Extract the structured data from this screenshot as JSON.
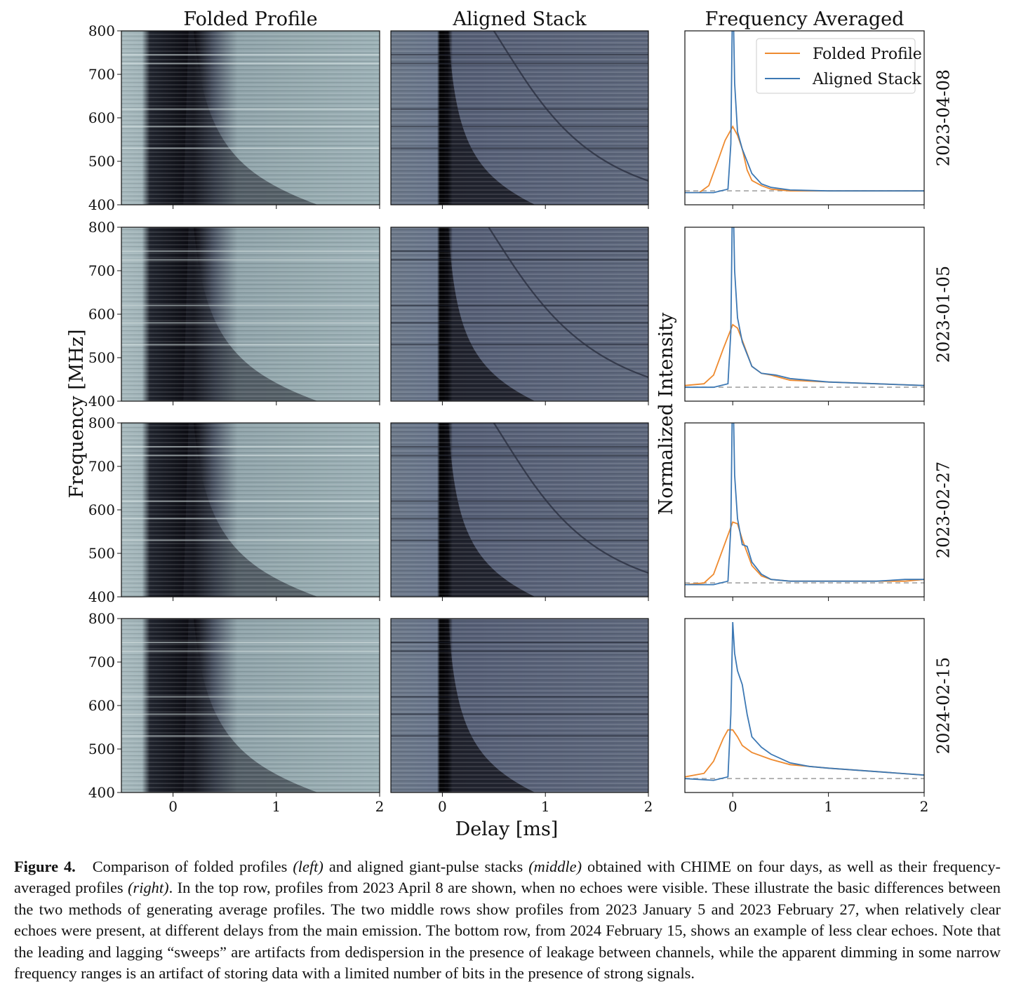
{
  "figure": {
    "column_titles": [
      "Folded Profile",
      "Aligned Stack",
      "Frequency Averaged"
    ],
    "ylabel_left": "Frequency [MHz]",
    "ylabel_right": "Normalized Intensity",
    "xlabel": "Delay [ms]",
    "row_labels": [
      "2023-04-08",
      "2023-01-05",
      "2023-02-27",
      "2024-02-15"
    ],
    "legend": [
      {
        "label": "Folded Profile",
        "color": "#ee8a2f"
      },
      {
        "label": "Aligned Stack",
        "color": "#3c78b4"
      }
    ]
  },
  "chart_data": [
    {
      "type": "heatmap",
      "panel": "waterfall",
      "columns": [
        "Folded Profile",
        "Aligned Stack"
      ],
      "rows": [
        "2023-04-08",
        "2023-01-05",
        "2023-02-27",
        "2024-02-15"
      ],
      "xlabel": "Delay [ms]",
      "ylabel": "Frequency [MHz]",
      "xlim": [
        -0.5,
        2
      ],
      "ylim": [
        400,
        800
      ],
      "x_ticks": [
        "0",
        "1",
        "2"
      ],
      "y_ticks": [
        "400",
        "500",
        "600",
        "700",
        "800"
      ],
      "colormap": "bone"
    },
    {
      "type": "line",
      "panel": "frequency_averaged",
      "title": "Frequency Averaged",
      "xlabel": "Delay [ms]",
      "ylabel": "Normalized Intensity",
      "xlim": [
        -0.5,
        2
      ],
      "x_ticks": [
        "0",
        "1",
        "2"
      ],
      "legend_position": "top-right",
      "rows": [
        {
          "label": "2023-04-08",
          "baseline": 0.08,
          "series": [
            {
              "name": "Folded Profile",
              "x": [
                -0.5,
                -0.35,
                -0.25,
                -0.15,
                -0.08,
                0,
                0.05,
                0.1,
                0.15,
                0.2,
                0.3,
                0.4,
                0.6,
                1,
                1.5,
                2
              ],
              "y": [
                0.07,
                0.07,
                0.11,
                0.26,
                0.37,
                0.45,
                0.4,
                0.32,
                0.2,
                0.14,
                0.11,
                0.09,
                0.08,
                0.08,
                0.08,
                0.08
              ]
            },
            {
              "name": "Aligned Stack",
              "x": [
                -0.5,
                -0.2,
                -0.05,
                -0.02,
                0,
                0.02,
                0.05,
                0.1,
                0.2,
                0.3,
                0.4,
                0.6,
                1,
                1.5,
                2
              ],
              "y": [
                0.07,
                0.07,
                0.09,
                0.35,
                1.3,
                0.7,
                0.42,
                0.32,
                0.18,
                0.12,
                0.1,
                0.085,
                0.08,
                0.08,
                0.08
              ]
            }
          ]
        },
        {
          "label": "2023-01-05",
          "baseline": 0.08,
          "series": [
            {
              "name": "Folded Profile",
              "x": [
                -0.5,
                -0.3,
                -0.2,
                -0.1,
                0,
                0.05,
                0.1,
                0.2,
                0.3,
                0.4,
                0.6,
                1,
                1.5,
                2
              ],
              "y": [
                0.09,
                0.1,
                0.15,
                0.3,
                0.44,
                0.42,
                0.35,
                0.2,
                0.16,
                0.15,
                0.12,
                0.11,
                0.1,
                0.09
              ]
            },
            {
              "name": "Aligned Stack",
              "x": [
                -0.5,
                -0.2,
                -0.05,
                -0.02,
                0,
                0.02,
                0.05,
                0.1,
                0.2,
                0.3,
                0.45,
                0.6,
                1,
                1.5,
                2
              ],
              "y": [
                0.08,
                0.08,
                0.1,
                0.4,
                1.3,
                0.75,
                0.48,
                0.34,
                0.2,
                0.16,
                0.15,
                0.13,
                0.11,
                0.1,
                0.09
              ]
            }
          ]
        },
        {
          "label": "2023-02-27",
          "baseline": 0.08,
          "series": [
            {
              "name": "Folded Profile",
              "x": [
                -0.5,
                -0.3,
                -0.2,
                -0.1,
                0,
                0.05,
                0.1,
                0.2,
                0.3,
                0.4,
                0.6,
                1,
                1.5,
                1.8,
                2
              ],
              "y": [
                0.07,
                0.08,
                0.13,
                0.28,
                0.43,
                0.42,
                0.33,
                0.18,
                0.12,
                0.1,
                0.09,
                0.09,
                0.09,
                0.09,
                0.1
              ]
            },
            {
              "name": "Aligned Stack",
              "x": [
                -0.5,
                -0.2,
                -0.05,
                -0.02,
                0,
                0.02,
                0.05,
                0.1,
                0.15,
                0.2,
                0.3,
                0.4,
                0.6,
                1,
                1.5,
                1.8,
                2
              ],
              "y": [
                0.07,
                0.07,
                0.09,
                0.4,
                1.3,
                0.7,
                0.45,
                0.3,
                0.29,
                0.2,
                0.13,
                0.1,
                0.09,
                0.09,
                0.09,
                0.1,
                0.1
              ]
            }
          ]
        },
        {
          "label": "2024-02-15",
          "baseline": 0.08,
          "series": [
            {
              "name": "Folded Profile",
              "x": [
                -0.5,
                -0.3,
                -0.2,
                -0.1,
                -0.05,
                0,
                0.05,
                0.1,
                0.2,
                0.4,
                0.6,
                0.8,
                1,
                1.5,
                2
              ],
              "y": [
                0.09,
                0.11,
                0.18,
                0.31,
                0.36,
                0.36,
                0.32,
                0.27,
                0.23,
                0.19,
                0.16,
                0.15,
                0.14,
                0.12,
                0.1
              ]
            },
            {
              "name": "Aligned Stack",
              "x": [
                -0.5,
                -0.2,
                -0.05,
                -0.02,
                0,
                0.02,
                0.05,
                0.1,
                0.15,
                0.2,
                0.3,
                0.4,
                0.6,
                0.8,
                1,
                1.5,
                2
              ],
              "y": [
                0.08,
                0.07,
                0.09,
                0.45,
                0.98,
                0.8,
                0.7,
                0.62,
                0.45,
                0.32,
                0.26,
                0.22,
                0.17,
                0.15,
                0.14,
                0.12,
                0.1
              ]
            }
          ]
        }
      ]
    }
  ],
  "caption": {
    "label": "Figure 4.",
    "segments": [
      {
        "text": "Comparison of folded profiles "
      },
      {
        "text": "(left)",
        "italic": true
      },
      {
        "text": " and aligned giant-pulse stacks "
      },
      {
        "text": "(middle)",
        "italic": true
      },
      {
        "text": " obtained with CHIME on four days, as well as their frequency-averaged profiles "
      },
      {
        "text": "(right)",
        "italic": true
      },
      {
        "text": ". In the top row, profiles from 2023 April 8 are shown, when no echoes were visible. These illustrate the basic differences between the two methods of generating average profiles. The two middle rows show profiles from 2023 January 5 and 2023 February 27, when relatively clear echoes were present, at different delays from the main emission. The bottom row, from 2024 February 15, shows an example of less clear echoes. Note that the leading and lagging “sweeps” are artifacts from dedispersion in the presence of leakage between channels, while the apparent dimming in some narrow frequency ranges is an artifact of storing data with a limited number of bits in the presence of strong signals."
      }
    ]
  }
}
